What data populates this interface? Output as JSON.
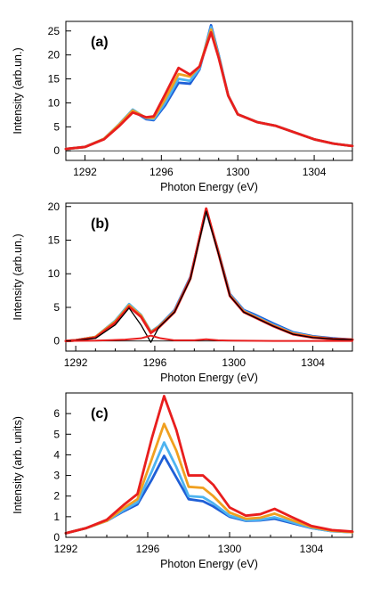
{
  "chart_data": [
    {
      "type": "line",
      "panel_label": "(a)",
      "xlabel": "Photon Energy (eV)",
      "ylabel": "Intensity (arb.un.)",
      "xlim": [
        1291,
        1306
      ],
      "ylim": [
        -2,
        27
      ],
      "xticks": [
        1292,
        1296,
        1300,
        1304
      ],
      "yticks": [
        0,
        5,
        10,
        15,
        20,
        25
      ],
      "grid": false,
      "legend": "none",
      "series": [
        {
          "color": "#1f5fd6",
          "x": [
            1291,
            1292,
            1293,
            1293.8,
            1294.5,
            1295.2,
            1295.6,
            1296.2,
            1296.9,
            1297.5,
            1298.0,
            1298.6,
            1299.0,
            1299.5,
            1300.0,
            1301.0,
            1302.0,
            1303.0,
            1304.0,
            1305.0,
            1306.0
          ],
          "y": [
            0.4,
            0.8,
            2.5,
            5.5,
            8.4,
            6.6,
            6.4,
            9.5,
            14.2,
            14.0,
            17.0,
            26.2,
            20.0,
            11.5,
            7.6,
            6.0,
            5.2,
            3.8,
            2.4,
            1.5,
            1.0
          ]
        },
        {
          "color": "#4db3f0",
          "x": [
            1291,
            1292,
            1293,
            1293.8,
            1294.5,
            1295.2,
            1295.6,
            1296.2,
            1296.9,
            1297.5,
            1298.0,
            1298.6,
            1299.0,
            1299.5,
            1300.0,
            1301.0,
            1302.0,
            1303.0,
            1304.0,
            1305.0,
            1306.0
          ],
          "y": [
            0.4,
            0.8,
            2.5,
            5.6,
            8.6,
            6.8,
            6.6,
            10.0,
            15.0,
            14.6,
            17.2,
            25.8,
            19.8,
            11.5,
            7.6,
            6.0,
            5.2,
            3.8,
            2.4,
            1.5,
            1.0
          ]
        },
        {
          "color": "#f0a020",
          "x": [
            1291,
            1292,
            1293,
            1293.8,
            1294.5,
            1295.2,
            1295.6,
            1296.2,
            1296.9,
            1297.5,
            1298.0,
            1298.6,
            1299.0,
            1299.5,
            1300.0,
            1301.0,
            1302.0,
            1303.0,
            1304.0,
            1305.0,
            1306.0
          ],
          "y": [
            0.4,
            0.8,
            2.5,
            5.5,
            8.4,
            6.9,
            6.9,
            10.8,
            16.0,
            15.5,
            17.6,
            25.3,
            19.6,
            11.5,
            7.6,
            6.0,
            5.2,
            3.8,
            2.4,
            1.5,
            1.0
          ]
        },
        {
          "color": "#e81e1e",
          "x": [
            1291,
            1292,
            1293,
            1293.8,
            1294.5,
            1295.2,
            1295.6,
            1296.2,
            1296.9,
            1297.5,
            1298.0,
            1298.6,
            1299.0,
            1299.5,
            1300.0,
            1301.0,
            1302.0,
            1303.0,
            1304.0,
            1305.0,
            1306.0
          ],
          "y": [
            0.4,
            0.8,
            2.4,
            5.2,
            8.0,
            7.0,
            7.2,
            11.8,
            17.3,
            15.9,
            17.6,
            24.7,
            19.4,
            11.5,
            7.6,
            6.0,
            5.2,
            3.8,
            2.4,
            1.5,
            1.0
          ]
        }
      ]
    },
    {
      "type": "line",
      "panel_label": "(b)",
      "xlabel": "Photon Energy (eV)",
      "ylabel": "Intensity (arb.un.)",
      "xlim": [
        1291.5,
        1306
      ],
      "ylim": [
        -1.5,
        20.5
      ],
      "xticks": [
        1292,
        1296,
        1300,
        1304
      ],
      "yticks": [
        0,
        5,
        10,
        15,
        20
      ],
      "grid": false,
      "legend": "none",
      "series": [
        {
          "color": "#1f5fd6",
          "x": [
            1291.5,
            1292,
            1293,
            1294,
            1294.7,
            1295.3,
            1295.8,
            1296.2,
            1297,
            1297.8,
            1298.6,
            1299.2,
            1299.8,
            1300.5,
            1301,
            1302,
            1303,
            1304,
            1305,
            1306
          ],
          "y": [
            0.0,
            0.1,
            0.6,
            3.0,
            5.4,
            3.8,
            1.3,
            2.2,
            4.6,
            9.5,
            19.4,
            13.5,
            7.0,
            4.6,
            4.0,
            2.6,
            1.3,
            0.7,
            0.4,
            0.2
          ]
        },
        {
          "color": "#4db3f0",
          "x": [
            1291.5,
            1292,
            1293,
            1294,
            1294.7,
            1295.3,
            1295.8,
            1296.2,
            1297,
            1297.8,
            1298.6,
            1299.2,
            1299.8,
            1300.5,
            1301,
            1302,
            1303,
            1304,
            1305,
            1306
          ],
          "y": [
            0.0,
            0.1,
            0.6,
            3.0,
            5.5,
            3.9,
            1.4,
            2.2,
            4.5,
            9.4,
            19.5,
            13.4,
            6.9,
            4.5,
            3.8,
            2.4,
            1.2,
            0.6,
            0.3,
            0.2
          ]
        },
        {
          "color": "#f0a020",
          "x": [
            1291.5,
            1292,
            1293,
            1294,
            1294.7,
            1295.3,
            1295.8,
            1296.2,
            1297,
            1297.8,
            1298.6,
            1299.2,
            1299.8,
            1300.5,
            1301,
            1302,
            1303,
            1304,
            1305,
            1306
          ],
          "y": [
            0.0,
            0.1,
            0.6,
            2.9,
            5.3,
            3.8,
            1.3,
            2.1,
            4.4,
            9.3,
            19.6,
            13.4,
            6.8,
            4.4,
            3.7,
            2.3,
            1.1,
            0.6,
            0.3,
            0.2
          ]
        },
        {
          "color": "#e81e1e",
          "x": [
            1291.5,
            1292,
            1293,
            1294,
            1294.7,
            1295.3,
            1295.8,
            1296.2,
            1297,
            1297.8,
            1298.6,
            1299.2,
            1299.8,
            1300.5,
            1301,
            1302,
            1303,
            1304,
            1305,
            1306
          ],
          "y": [
            0.0,
            0.1,
            0.5,
            2.7,
            5.1,
            3.6,
            1.2,
            2.0,
            4.3,
            9.3,
            19.7,
            13.3,
            6.7,
            4.3,
            3.6,
            2.2,
            1.0,
            0.5,
            0.3,
            0.2
          ]
        },
        {
          "color": "#000000",
          "x": [
            1291.5,
            1292,
            1293,
            1294,
            1294.7,
            1295.3,
            1295.8,
            1296.2,
            1297,
            1297.8,
            1298.6,
            1299.2,
            1299.8,
            1300.5,
            1301,
            1302,
            1303,
            1304,
            1305,
            1306
          ],
          "y": [
            0.0,
            0.1,
            0.4,
            2.4,
            4.9,
            2.4,
            -0.2,
            2.0,
            4.3,
            9.2,
            19.3,
            13.2,
            6.7,
            4.3,
            3.6,
            2.2,
            1.0,
            0.5,
            0.3,
            0.2
          ]
        },
        {
          "color": "#e81e1e",
          "x": [
            1291.5,
            1293,
            1294.5,
            1295.3,
            1295.8,
            1296.3,
            1297,
            1298,
            1298.6,
            1299.2,
            1300,
            1302,
            1306
          ],
          "y": [
            0.0,
            0.05,
            0.2,
            0.4,
            0.8,
            0.4,
            0.1,
            0.1,
            0.25,
            0.1,
            0.05,
            0.0,
            0.0
          ]
        }
      ]
    },
    {
      "type": "line",
      "panel_label": "(c)",
      "xlabel": "Photon Energy (eV)",
      "ylabel": "Intensity (arb. units)",
      "xlim": [
        1292,
        1306
      ],
      "ylim": [
        0,
        7
      ],
      "xticks": [
        1292,
        1296,
        1300,
        1304
      ],
      "yticks": [
        0,
        1,
        2,
        3,
        4,
        5,
        6
      ],
      "grid": false,
      "legend": "none",
      "series": [
        {
          "color": "#1f5fd6",
          "x": [
            1292,
            1293,
            1294,
            1294.8,
            1295.5,
            1296.2,
            1296.8,
            1297.4,
            1298,
            1298.7,
            1299.2,
            1300,
            1300.8,
            1301.5,
            1302.2,
            1303,
            1304,
            1305,
            1306
          ],
          "y": [
            0.2,
            0.45,
            0.8,
            1.25,
            1.6,
            2.8,
            3.95,
            2.9,
            1.85,
            1.75,
            1.5,
            1.0,
            0.8,
            0.82,
            0.9,
            0.7,
            0.45,
            0.3,
            0.25
          ]
        },
        {
          "color": "#4db3f0",
          "x": [
            1292,
            1293,
            1294,
            1294.8,
            1295.5,
            1296.2,
            1296.8,
            1297.4,
            1298,
            1298.7,
            1299.2,
            1300,
            1300.8,
            1301.5,
            1302.2,
            1303,
            1304,
            1305,
            1306
          ],
          "y": [
            0.2,
            0.45,
            0.8,
            1.3,
            1.7,
            3.2,
            4.6,
            3.4,
            2.0,
            1.95,
            1.65,
            1.05,
            0.82,
            0.85,
            0.97,
            0.75,
            0.45,
            0.3,
            0.25
          ]
        },
        {
          "color": "#f0a020",
          "x": [
            1292,
            1293,
            1294,
            1294.8,
            1295.5,
            1296.2,
            1296.8,
            1297.4,
            1298,
            1298.7,
            1299.2,
            1300,
            1300.8,
            1301.5,
            1302.2,
            1303,
            1304,
            1305,
            1306
          ],
          "y": [
            0.2,
            0.45,
            0.8,
            1.4,
            1.85,
            3.8,
            5.5,
            4.2,
            2.45,
            2.4,
            2.0,
            1.2,
            0.9,
            0.95,
            1.15,
            0.85,
            0.5,
            0.32,
            0.25
          ]
        },
        {
          "color": "#e81e1e",
          "x": [
            1292,
            1293,
            1294,
            1294.8,
            1295.5,
            1296.2,
            1296.8,
            1297.4,
            1298,
            1298.7,
            1299.2,
            1300,
            1300.8,
            1301.5,
            1302.2,
            1303,
            1304,
            1305,
            1306
          ],
          "y": [
            0.2,
            0.45,
            0.85,
            1.55,
            2.1,
            4.8,
            6.85,
            5.2,
            3.0,
            3.0,
            2.55,
            1.45,
            1.05,
            1.12,
            1.38,
            1.0,
            0.55,
            0.35,
            0.28
          ]
        }
      ]
    }
  ]
}
